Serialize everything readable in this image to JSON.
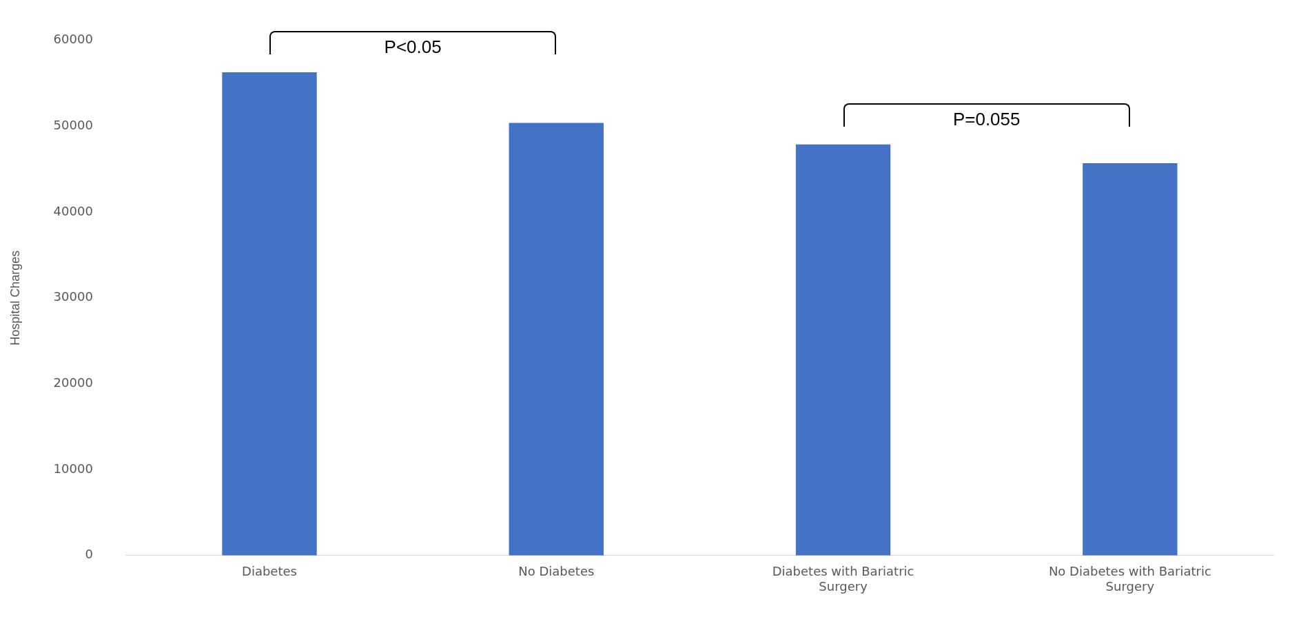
{
  "chart_data": {
    "type": "bar",
    "ylabel": "Hospital Charges",
    "categories": [
      "Diabetes",
      "No Diabetes",
      "Diabetes with Bariatric Surgery",
      "No Diabetes with Bariatric Surgery"
    ],
    "values": [
      56300,
      50400,
      47900,
      45700
    ],
    "color": "#4472c4",
    "ylim": [
      0,
      60000
    ],
    "yticks": [
      0,
      10000,
      20000,
      30000,
      40000,
      50000,
      60000
    ],
    "grid": false,
    "legend": false,
    "annotations": [
      "P<0.05",
      "P=0.055"
    ]
  }
}
